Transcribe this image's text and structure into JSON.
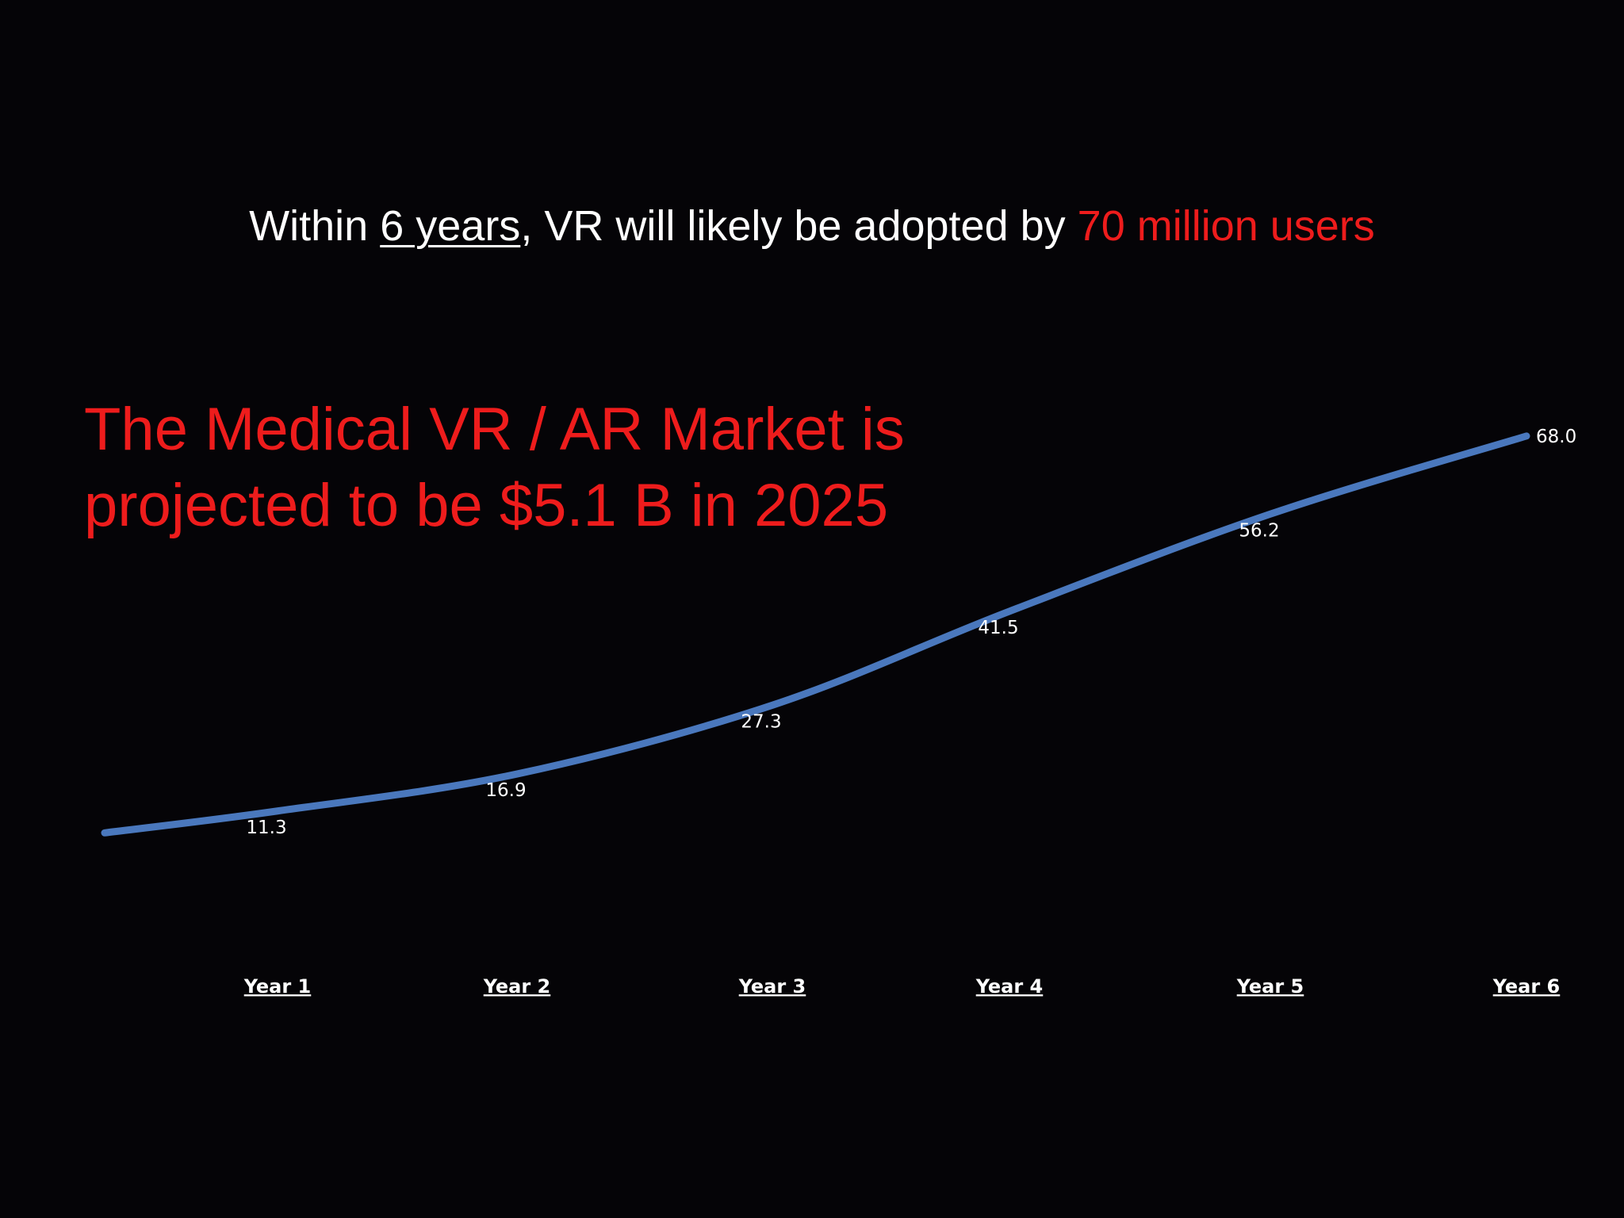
{
  "headline": {
    "prefix": "Within ",
    "underlined": "6 years",
    "middle": ", VR will likely be adopted by ",
    "accent": "70 million users"
  },
  "market_text": {
    "line1": "The Medical VR / AR Market is",
    "line2": "projected to be $5.1 B in 2025"
  },
  "colors": {
    "background": "#050407",
    "line": "#4a78bd",
    "accent": "#ee1c1c",
    "text": "#ffffff"
  },
  "chart_data": {
    "type": "line",
    "categories": [
      "Year 1",
      "Year 2",
      "Year 3",
      "Year 4",
      "Year 5",
      "Year 6"
    ],
    "series": [
      {
        "values": [
          11.3,
          16.9,
          27.3,
          41.5,
          56.2,
          68.0
        ]
      }
    ],
    "data_labels": [
      "11.3",
      "16.9",
      "27.3",
      "41.5",
      "56.2",
      "68.0"
    ],
    "title": "",
    "xlabel": "",
    "ylabel": "",
    "grid": false,
    "smooth": true,
    "line_start_value": 8.0
  }
}
